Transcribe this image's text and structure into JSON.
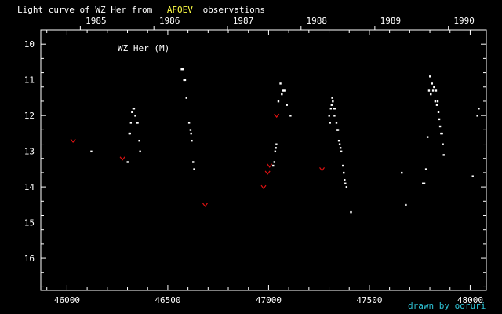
{
  "title": {
    "prefix": "Light curve of WZ Her from",
    "highlight": "AFOEV",
    "suffix": "observations"
  },
  "credit": "drawn by ooruri",
  "colors": {
    "background": "#000000",
    "frame": "#ffffff",
    "title_highlight": "#ffff44",
    "credit": "#2ec4d6",
    "observation": "#ffffff",
    "fainter_than": "#dd1111"
  },
  "chart_data": {
    "type": "scatter",
    "legend_label": "WZ Her (M)",
    "x_axis": {
      "label": "",
      "min": 45870,
      "max": 48080,
      "ticks": [
        "46000",
        "46500",
        "47000",
        "47500",
        "48000"
      ]
    },
    "y_axis": {
      "label": "",
      "min": 9.6,
      "max": 16.9,
      "inverted": true,
      "ticks": [
        "10",
        "11",
        "12",
        "13",
        "14",
        "15",
        "16"
      ]
    },
    "top_axis": {
      "label": "year",
      "ticks": [
        {
          "label": "1985",
          "jd_offset": 46066
        },
        {
          "label": "1986",
          "jd_offset": 46431
        },
        {
          "label": "1987",
          "jd_offset": 46796
        },
        {
          "label": "1988",
          "jd_offset": 47161
        },
        {
          "label": "1989",
          "jd_offset": 47527
        },
        {
          "label": "1990",
          "jd_offset": 47892
        }
      ]
    },
    "series": [
      {
        "kind": "observation",
        "points": [
          [
            46120,
            13.0
          ],
          [
            46300,
            13.3
          ],
          [
            46308,
            12.5
          ],
          [
            46312,
            12.5
          ],
          [
            46316,
            12.2
          ],
          [
            46322,
            11.9
          ],
          [
            46328,
            11.8
          ],
          [
            46332,
            11.8
          ],
          [
            46338,
            12.0
          ],
          [
            46345,
            12.2
          ],
          [
            46350,
            12.2
          ],
          [
            46358,
            12.7
          ],
          [
            46362,
            13.0
          ],
          [
            46568,
            10.7
          ],
          [
            46575,
            10.7
          ],
          [
            46580,
            11.0
          ],
          [
            46585,
            11.0
          ],
          [
            46592,
            11.5
          ],
          [
            46605,
            12.2
          ],
          [
            46612,
            12.4
          ],
          [
            46615,
            12.5
          ],
          [
            46618,
            12.7
          ],
          [
            46625,
            13.3
          ],
          [
            46630,
            13.5
          ],
          [
            47022,
            13.4
          ],
          [
            47028,
            13.3
          ],
          [
            47032,
            13.0
          ],
          [
            47035,
            12.9
          ],
          [
            47038,
            12.8
          ],
          [
            47048,
            11.6
          ],
          [
            47058,
            11.1
          ],
          [
            47065,
            11.4
          ],
          [
            47072,
            11.3
          ],
          [
            47078,
            11.3
          ],
          [
            47090,
            11.7
          ],
          [
            47108,
            12.0
          ],
          [
            47300,
            12.0
          ],
          [
            47304,
            12.2
          ],
          [
            47308,
            11.8
          ],
          [
            47312,
            11.7
          ],
          [
            47315,
            11.5
          ],
          [
            47318,
            11.6
          ],
          [
            47322,
            11.8
          ],
          [
            47326,
            12.0
          ],
          [
            47330,
            11.8
          ],
          [
            47336,
            12.2
          ],
          [
            47340,
            12.4
          ],
          [
            47344,
            12.4
          ],
          [
            47348,
            12.7
          ],
          [
            47352,
            12.8
          ],
          [
            47356,
            12.9
          ],
          [
            47360,
            13.0
          ],
          [
            47368,
            13.4
          ],
          [
            47372,
            13.6
          ],
          [
            47376,
            13.8
          ],
          [
            47380,
            13.9
          ],
          [
            47386,
            14.0
          ],
          [
            47408,
            14.7
          ],
          [
            47660,
            13.6
          ],
          [
            47680,
            14.5
          ],
          [
            47765,
            13.9
          ],
          [
            47772,
            13.9
          ],
          [
            47780,
            13.5
          ],
          [
            47788,
            12.6
          ],
          [
            47795,
            11.3
          ],
          [
            47800,
            10.9
          ],
          [
            47804,
            11.4
          ],
          [
            47810,
            11.1
          ],
          [
            47815,
            11.3
          ],
          [
            47820,
            11.2
          ],
          [
            47826,
            11.6
          ],
          [
            47830,
            11.3
          ],
          [
            47834,
            11.7
          ],
          [
            47838,
            11.6
          ],
          [
            47842,
            11.9
          ],
          [
            47846,
            12.1
          ],
          [
            47850,
            12.3
          ],
          [
            47855,
            12.5
          ],
          [
            47860,
            12.5
          ],
          [
            47864,
            12.8
          ],
          [
            47868,
            13.1
          ],
          [
            48012,
            13.7
          ],
          [
            48035,
            12.0
          ],
          [
            48042,
            11.8
          ]
        ]
      },
      {
        "kind": "fainter_than",
        "points": [
          [
            46030,
            12.7
          ],
          [
            46275,
            13.2
          ],
          [
            46685,
            14.5
          ],
          [
            46975,
            14.0
          ],
          [
            46995,
            13.6
          ],
          [
            47005,
            13.4
          ],
          [
            47040,
            12.0
          ],
          [
            47265,
            13.5
          ]
        ]
      }
    ]
  }
}
